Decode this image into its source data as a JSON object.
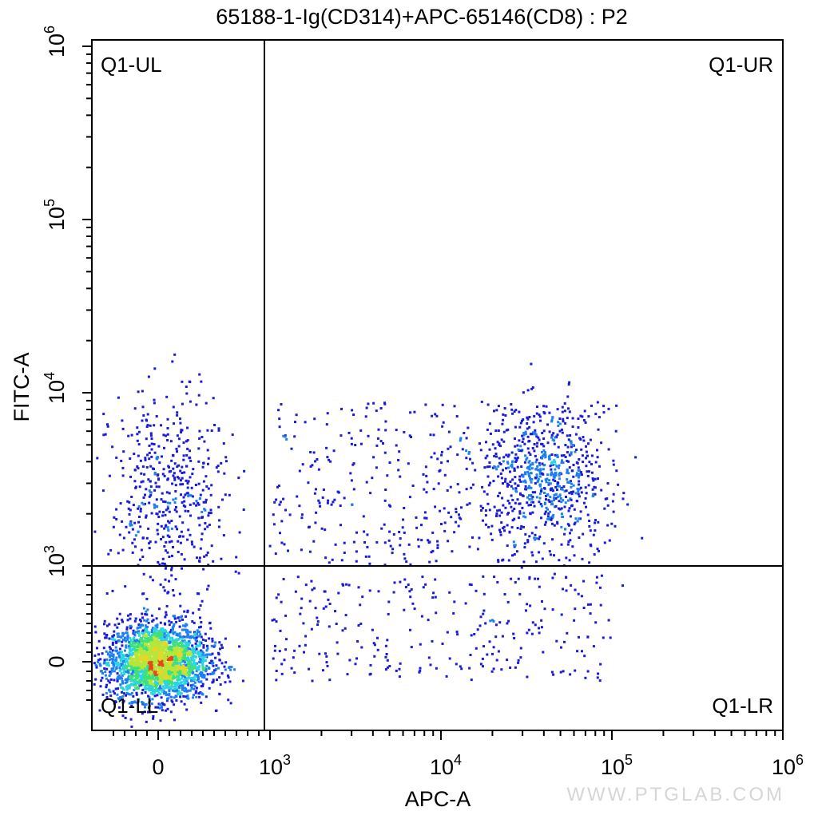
{
  "chart_data": {
    "type": "scatter",
    "title": "65188-1-Ig(CD314)+APC-65146(CD8) : P2",
    "xlabel": "APC-A",
    "ylabel": "FITC-A",
    "x_scale": "biexponential",
    "y_scale": "biexponential",
    "xlim": [
      -400,
      1000000
    ],
    "ylim": [
      -400,
      1000000
    ],
    "x_ticks": [
      {
        "base": "0",
        "exp": ""
      },
      {
        "base": "10",
        "exp": "3"
      },
      {
        "base": "10",
        "exp": "4"
      },
      {
        "base": "10",
        "exp": "5"
      },
      {
        "base": "10",
        "exp": "6"
      }
    ],
    "y_ticks": [
      {
        "base": "0",
        "exp": ""
      },
      {
        "base": "10",
        "exp": "3"
      },
      {
        "base": "10",
        "exp": "4"
      },
      {
        "base": "10",
        "exp": "5"
      },
      {
        "base": "10",
        "exp": "6"
      }
    ],
    "gates": {
      "x": 950,
      "y": 1000
    },
    "quadrants": [
      {
        "id": "UL",
        "label": "Q1-UL",
        "position": "top-left"
      },
      {
        "id": "UR",
        "label": "Q1-UR",
        "position": "top-right"
      },
      {
        "id": "LL",
        "label": "Q1-LL",
        "position": "bottom-left"
      },
      {
        "id": "LR",
        "label": "Q1-LR",
        "position": "bottom-right"
      }
    ],
    "populations": [
      {
        "center": [
          0,
          0
        ],
        "spread_x": 230,
        "spread_y": 200,
        "events": 2600
      },
      {
        "center": [
          40000,
          3200
        ],
        "spread_x_decades": 0.18,
        "spread_y_decades": 0.2,
        "events": 650
      },
      {
        "center": [
          100,
          2500
        ],
        "spread_x": 260,
        "spread_y_decades": 0.3,
        "events": 500
      },
      {
        "center_x_range": [
          1000,
          100000
        ],
        "center_y_range": [
          300,
          8000
        ],
        "events": 700
      }
    ],
    "density_colors": [
      "#1a1adb",
      "#1e7ff0",
      "#2ad4e0",
      "#3fe07a",
      "#b6e63a",
      "#e8d52a",
      "#e24a1c"
    ],
    "grid": false,
    "legend": "none"
  },
  "watermark": "WWW.PTGLAB.COM"
}
